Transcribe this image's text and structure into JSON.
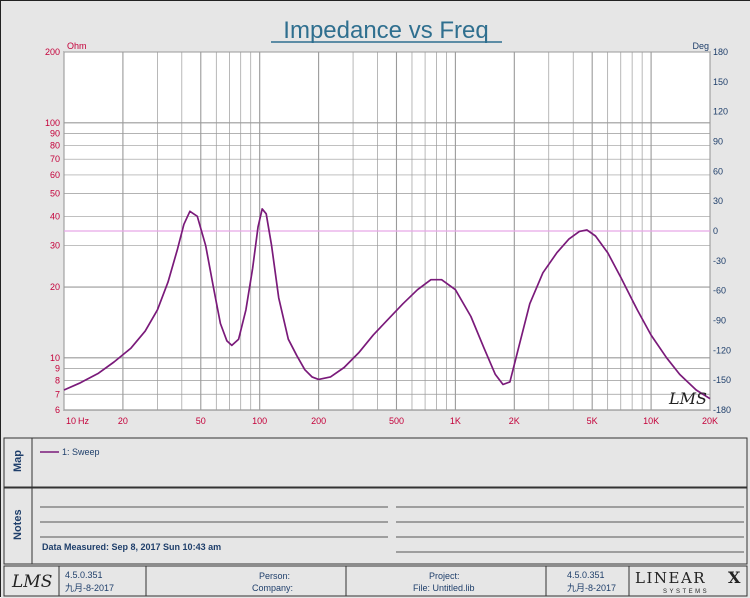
{
  "chart_data": {
    "type": "line",
    "title": "Impedance vs Freq",
    "y_unit_left": "Ohm",
    "y_unit_right": "Deg",
    "x_unit": "Hz",
    "x_scale": "log",
    "y_scale": "log",
    "xlim": [
      10,
      20000
    ],
    "ylim": [
      6,
      200
    ],
    "ylim_right": [
      -180,
      180
    ],
    "x_ticks": [
      {
        "value": 10,
        "label": "10"
      },
      {
        "value": 20,
        "label": "20"
      },
      {
        "value": 50,
        "label": "50"
      },
      {
        "value": 100,
        "label": "100"
      },
      {
        "value": 200,
        "label": "200"
      },
      {
        "value": 500,
        "label": "500"
      },
      {
        "value": 1000,
        "label": "1K"
      },
      {
        "value": 2000,
        "label": "2K"
      },
      {
        "value": 5000,
        "label": "5K"
      },
      {
        "value": 10000,
        "label": "10K"
      },
      {
        "value": 20000,
        "label": "20K"
      }
    ],
    "y_ticks": [
      {
        "value": 200,
        "label": "200"
      },
      {
        "value": 100,
        "label": "100"
      },
      {
        "value": 90,
        "label": "90"
      },
      {
        "value": 80,
        "label": "80"
      },
      {
        "value": 70,
        "label": "70"
      },
      {
        "value": 60,
        "label": "60"
      },
      {
        "value": 50,
        "label": "50"
      },
      {
        "value": 40,
        "label": "40"
      },
      {
        "value": 30,
        "label": "30"
      },
      {
        "value": 20,
        "label": "20"
      },
      {
        "value": 10,
        "label": "10"
      },
      {
        "value": 9,
        "label": "9"
      },
      {
        "value": 8,
        "label": "8"
      },
      {
        "value": 7,
        "label": "7"
      },
      {
        "value": 6,
        "label": "6"
      }
    ],
    "y_ticks_right": [
      "180",
      "150",
      "120",
      "90",
      "60",
      "30",
      "0",
      "-30",
      "-60",
      "-90",
      "-120",
      "-150",
      "-180"
    ],
    "grid": true,
    "reference_line": {
      "axis": "right",
      "value": 0,
      "color": "#e8a6e8"
    },
    "series": [
      {
        "name": "1: Sweep",
        "color": "#7a1a7a",
        "x": [
          10,
          12,
          15,
          18,
          22,
          26,
          30,
          34,
          38,
          41,
          44,
          48,
          53,
          58,
          63,
          68,
          72,
          78,
          85,
          92,
          98,
          103,
          108,
          115,
          125,
          140,
          155,
          170,
          185,
          200,
          230,
          270,
          320,
          380,
          450,
          540,
          640,
          750,
          850,
          1000,
          1200,
          1400,
          1600,
          1750,
          1900,
          2100,
          2400,
          2800,
          3300,
          3800,
          4300,
          4700,
          5200,
          6000,
          7000,
          8500,
          10000,
          12000,
          14000,
          17000,
          20000
        ],
        "values": [
          7.3,
          7.8,
          8.6,
          9.6,
          11,
          13,
          16,
          21,
          29,
          37,
          42,
          40,
          30,
          20,
          14,
          11.8,
          11.3,
          12,
          16,
          24,
          36,
          43,
          41,
          30,
          18,
          12,
          10.2,
          8.9,
          8.3,
          8.1,
          8.3,
          9.1,
          10.5,
          12.5,
          14.5,
          17,
          19.5,
          21.5,
          21.5,
          19.5,
          15,
          11,
          8.5,
          7.7,
          7.9,
          11,
          17,
          23,
          28,
          32,
          34.5,
          35,
          33,
          28,
          22,
          16,
          12.5,
          10,
          8.5,
          7.3,
          6.7
        ]
      }
    ]
  },
  "map": {
    "label": "Map",
    "legend_entry": "1: Sweep"
  },
  "notes": {
    "label": "Notes",
    "data_measured": "Data Measured: Sep 8, 2017 Sun 10:43 am"
  },
  "footer": {
    "logo_text": "LMS",
    "version_left": "4.5.0.351",
    "date_left": "九月-8-2017",
    "person_label": "Person:",
    "company_label": "Company:",
    "project_label": "Project:",
    "file_label": "File: Untitled.lib",
    "version_right": "4.5.0.351",
    "date_right": "九月-8-2017",
    "brand_name": "LINEAR",
    "brand_x": "X",
    "brand_sub": "SYSTEMS"
  },
  "watermark": "LMS",
  "colors": {
    "title": "#2f6f8f",
    "axis_left": "#c4003a",
    "axis_right": "#1f3f6b",
    "grid": "#9a9a9a",
    "curve": "#7a1a7a",
    "plot_bg": "#ffffff",
    "page_bg": "#e6e6e6"
  }
}
